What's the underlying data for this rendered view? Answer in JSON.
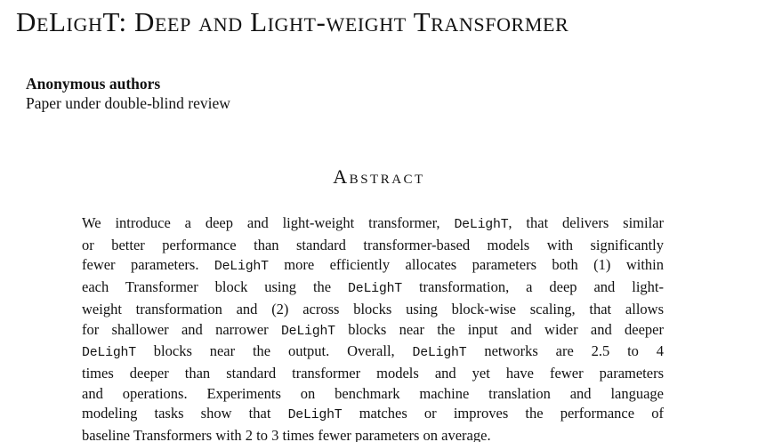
{
  "paper": {
    "title": "DeLighT: Deep and Light-weight Transformer",
    "authors": "Anonymous authors",
    "review_note": "Paper under double-blind review"
  },
  "abstract": {
    "heading": "Abstract",
    "lines": [
      [
        {
          "t": "We introduce a deep and light-weight transformer, "
        },
        {
          "t": "DeLighT",
          "mono": true
        },
        {
          "t": ", that delivers similar"
        }
      ],
      [
        {
          "t": "or better performance than standard transformer-based models with significantly"
        }
      ],
      [
        {
          "t": "fewer parameters. "
        },
        {
          "t": "DeLighT",
          "mono": true
        },
        {
          "t": " more efficiently allocates parameters both (1) within"
        }
      ],
      [
        {
          "t": "each Transformer block using the "
        },
        {
          "t": "DeLighT",
          "mono": true
        },
        {
          "t": " transformation, a deep and light-"
        }
      ],
      [
        {
          "t": "weight transformation and (2) across blocks using block-wise scaling, that allows"
        }
      ],
      [
        {
          "t": "for shallower and narrower "
        },
        {
          "t": "DeLighT",
          "mono": true
        },
        {
          "t": " blocks near the input and wider and deeper"
        }
      ],
      [
        {
          "t": "DeLighT",
          "mono": true
        },
        {
          "t": " blocks near the output. Overall, "
        },
        {
          "t": "DeLighT",
          "mono": true
        },
        {
          "t": " networks are 2.5 to 4"
        }
      ],
      [
        {
          "t": "times deeper than standard transformer models and yet have fewer parameters"
        }
      ],
      [
        {
          "t": "and operations. Experiments on benchmark machine translation and language"
        }
      ],
      [
        {
          "t": "modeling tasks show that "
        },
        {
          "t": "DeLighT",
          "mono": true
        },
        {
          "t": " matches or improves the performance of"
        }
      ],
      [
        {
          "t": "baseline Transformers with 2 to 3 times fewer parameters on average."
        }
      ]
    ]
  }
}
